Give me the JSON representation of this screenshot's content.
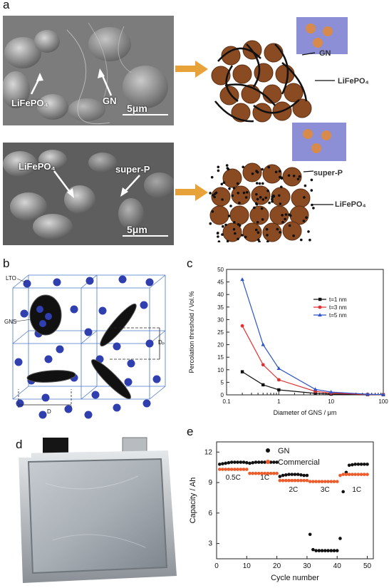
{
  "figure": {
    "panel_letters": {
      "a": "a",
      "b": "b",
      "c": "c",
      "d": "d",
      "e": "e"
    }
  },
  "panel_a": {
    "top": {
      "sem_labels": {
        "material": "LiFePO₄",
        "additive": "GN"
      },
      "scale_bar": "5μm",
      "schematic_labels": {
        "additive": "GN",
        "material": "LiFePO₄"
      }
    },
    "bottom": {
      "sem_labels": {
        "material": "LiFePO₄",
        "additive": "super-P"
      },
      "scale_bar": "5μm",
      "schematic_labels": {
        "additive": "super-P",
        "material": "LiFePO₄"
      }
    },
    "colors": {
      "particle": "#8a4a22",
      "arrow": "#e8a23a",
      "inset": "#8c8fd6"
    }
  },
  "panel_b": {
    "labels": {
      "lto": "LTO",
      "gns": "GNS",
      "d": "D",
      "dp": "Dₚ"
    },
    "colors": {
      "sphere": "#2f3fb0",
      "cube": "#4a78c8"
    }
  },
  "chart_c": {
    "chart_data": {
      "type": "line",
      "xlabel": "Diameter of GNS / μm",
      "ylabel": "Percolation threshold / Vol.%",
      "xscale": "log",
      "xlim": [
        0.1,
        100
      ],
      "ylim": [
        0,
        50
      ],
      "xticks": [
        "0.1",
        "1",
        "10",
        "100"
      ],
      "yticks": [
        "0",
        "5",
        "10",
        "15",
        "20",
        "25",
        "30",
        "35",
        "40",
        "45",
        "50"
      ],
      "legend_position": "top-right",
      "series": [
        {
          "name": "t=1 nm",
          "color": "#111111",
          "marker": "square",
          "x": [
            0.2,
            0.5,
            1,
            5,
            10,
            50,
            100
          ],
          "y": [
            9.2,
            4,
            2,
            0.6,
            0.3,
            0.1,
            0.05
          ]
        },
        {
          "name": "t=3 nm",
          "color": "#e53030",
          "marker": "circle",
          "x": [
            0.2,
            0.5,
            1,
            5,
            10,
            50,
            100
          ],
          "y": [
            27.5,
            12,
            6,
            1.4,
            0.7,
            0.15,
            0.08
          ]
        },
        {
          "name": "t=5 nm",
          "color": "#2f55c8",
          "marker": "triangle",
          "x": [
            0.2,
            0.5,
            1,
            5,
            10,
            50,
            100
          ],
          "y": [
            46,
            20,
            10.5,
            2.2,
            1.1,
            0.25,
            0.12
          ]
        }
      ]
    }
  },
  "chart_e": {
    "chart_data": {
      "type": "scatter",
      "xlabel": "Cycle number",
      "ylabel": "Capacity / Ah",
      "xlim": [
        0,
        52
      ],
      "ylim": [
        1.5,
        13
      ],
      "xticks": [
        "0",
        "10",
        "20",
        "30",
        "40",
        "50"
      ],
      "yticks": [
        "3",
        "6",
        "9",
        "12"
      ],
      "legend_position": "top-center",
      "annotations": [
        {
          "text": "0.5C",
          "x": 5.5,
          "y": 9.3
        },
        {
          "text": "1C",
          "x": 16,
          "y": 9.3
        },
        {
          "text": "2C",
          "x": 25.5,
          "y": 8.1
        },
        {
          "text": "3C",
          "x": 36,
          "y": 8.1
        },
        {
          "text": "1C",
          "x": 46.5,
          "y": 8.1
        }
      ],
      "series": [
        {
          "name": "GN",
          "color": "#111111",
          "x": [
            1,
            2,
            3,
            4,
            5,
            6,
            7,
            8,
            9,
            10,
            11,
            12,
            13,
            14,
            15,
            16,
            17,
            18,
            19,
            20,
            21,
            22,
            23,
            24,
            25,
            26,
            27,
            28,
            29,
            30,
            31,
            32,
            33,
            34,
            35,
            36,
            37,
            38,
            39,
            40,
            41,
            42,
            43,
            44,
            45,
            46,
            47,
            48,
            49,
            50
          ],
          "y": [
            10.8,
            10.85,
            10.9,
            10.95,
            11,
            11,
            11,
            11,
            11,
            10.95,
            10.9,
            10.95,
            11,
            11,
            11,
            11,
            11,
            11,
            11,
            11,
            9.6,
            9.7,
            9.75,
            9.8,
            9.8,
            9.8,
            9.8,
            9.75,
            9.7,
            9.7,
            3.9,
            2.4,
            2.3,
            2.3,
            2.3,
            2.3,
            2.3,
            2.3,
            2.3,
            2.3,
            3.5,
            8.1,
            10,
            10.7,
            10.75,
            10.8,
            10.8,
            10.8,
            10.8,
            10.8
          ]
        },
        {
          "name": "Commercial",
          "color": "#ee5a2a",
          "x": [
            1,
            2,
            3,
            4,
            5,
            6,
            7,
            8,
            9,
            10,
            11,
            12,
            13,
            14,
            15,
            16,
            17,
            18,
            19,
            20,
            21,
            22,
            23,
            24,
            25,
            26,
            27,
            28,
            29,
            30,
            31,
            32,
            33,
            34,
            35,
            36,
            37,
            38,
            39,
            40,
            41,
            42,
            43,
            44,
            45,
            46,
            47,
            48,
            49,
            50
          ],
          "y": [
            10.3,
            10.3,
            10.3,
            10.3,
            10.3,
            10.3,
            10.3,
            10.3,
            10.3,
            10.3,
            9.9,
            9.9,
            9.9,
            9.9,
            9.9,
            9.9,
            9.9,
            9.9,
            9.9,
            9.9,
            9.2,
            9.2,
            9.2,
            9.2,
            9.2,
            9.2,
            9.2,
            9.2,
            9.2,
            9.2,
            9.1,
            9.1,
            9.1,
            9.1,
            9.1,
            9.1,
            9.1,
            9.1,
            9.1,
            9.1,
            9.7,
            9.8,
            9.8,
            9.8,
            9.8,
            9.8,
            9.8,
            9.8,
            9.8,
            9.8
          ]
        }
      ]
    }
  },
  "panel_d": {
    "colors": {
      "pouch": "#9aa2a8",
      "tab": "#151515",
      "tab_right": "#b8bcc0"
    }
  }
}
